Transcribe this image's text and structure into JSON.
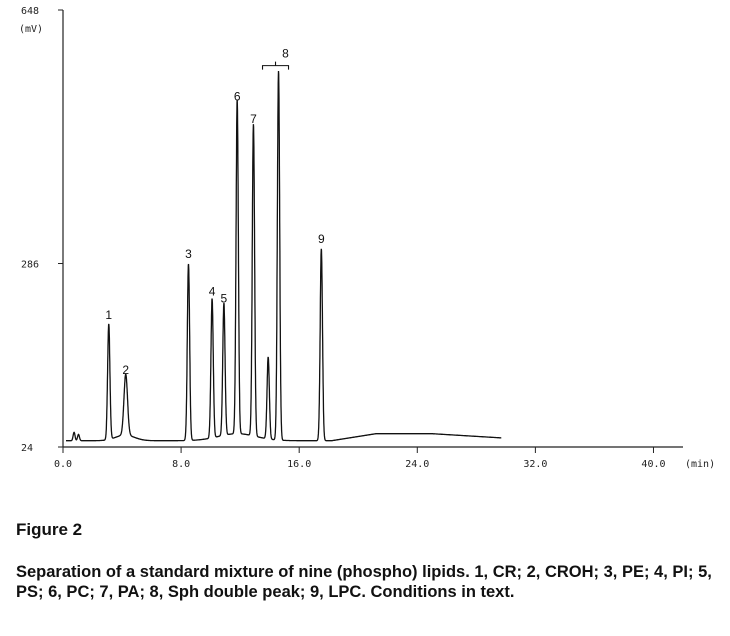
{
  "chart_data": {
    "type": "line",
    "title": "",
    "xlabel": "(min)",
    "ylabel": "(mV)",
    "xlim": [
      0,
      42
    ],
    "ylim": [
      24,
      648
    ],
    "x_ticks": [
      {
        "value": 0,
        "label": "0.0"
      },
      {
        "value": 8,
        "label": "8.0"
      },
      {
        "value": 16,
        "label": "16.0"
      },
      {
        "value": 24,
        "label": "24.0"
      },
      {
        "value": 32,
        "label": "32.0"
      },
      {
        "value": 40,
        "label": "40.0"
      }
    ],
    "y_ticks": [
      {
        "value": 24,
        "label": "24"
      },
      {
        "value": 286,
        "label": "286"
      },
      {
        "value": 648,
        "label": "648"
      }
    ],
    "baseline": 33,
    "run_end_min": 29.7,
    "noise_bumps": [
      {
        "x": 0.75,
        "y": 45
      },
      {
        "x": 1.05,
        "y": 42
      }
    ],
    "peaks": [
      {
        "label": "1",
        "x": 3.1,
        "y": 198
      },
      {
        "label": "2",
        "x": 4.25,
        "y": 120
      },
      {
        "label": "3",
        "x": 8.5,
        "y": 285
      },
      {
        "label": "4",
        "x": 10.1,
        "y": 232
      },
      {
        "label": "5",
        "x": 10.9,
        "y": 222
      },
      {
        "label": "6",
        "x": 11.8,
        "y": 510
      },
      {
        "label": "7",
        "x": 12.9,
        "y": 478
      },
      {
        "label": "",
        "x": 13.9,
        "y": 150
      },
      {
        "label": "8",
        "x": 14.6,
        "y": 560
      },
      {
        "label": "9",
        "x": 17.5,
        "y": 307
      }
    ]
  },
  "caption": {
    "figure_label": "Figure 2",
    "text": "Separation of a standard mixture of nine (phospho) lipids. 1, CR; 2, CROH; 3, PE; 4, PI; 5, PS; 6, PC; 7, PA; 8, Sph double peak; 9, LPC. Conditions in text."
  }
}
